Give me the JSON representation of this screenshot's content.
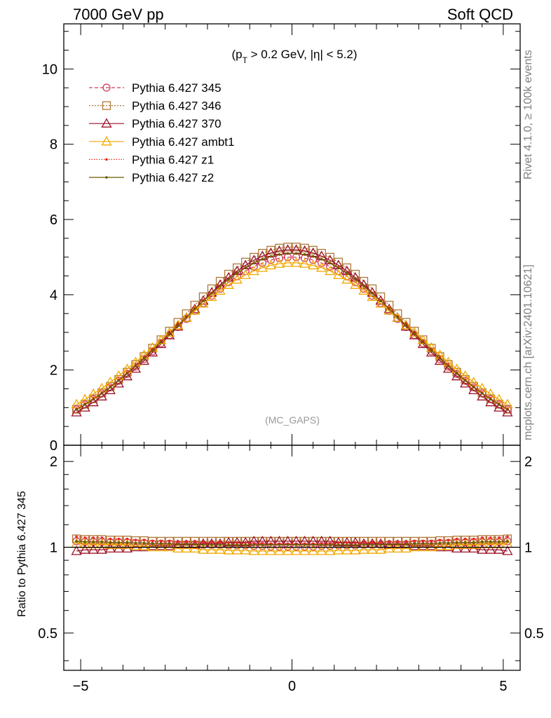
{
  "header": {
    "left": "7000 GeV pp",
    "right": "Soft QCD"
  },
  "side_labels": {
    "rivet": "Rivet 4.1.0, ≥ 100k events",
    "mcplots": "mcplots.cern.ch [arXiv:2401.10621]"
  },
  "chart_data": {
    "type": "line",
    "annotation": {
      "open": "(p",
      "sub": "T",
      "rest": " > 0.2 GeV, |η| < 5.2)"
    },
    "watermark": "(MC_GAPS)",
    "x": [
      -5.1,
      -4.9,
      -4.7,
      -4.5,
      -4.3,
      -4.1,
      -3.9,
      -3.7,
      -3.5,
      -3.3,
      -3.1,
      -2.9,
      -2.7,
      -2.5,
      -2.3,
      -2.1,
      -1.9,
      -1.7,
      -1.5,
      -1.3,
      -1.1,
      -0.9,
      -0.7,
      -0.5,
      -0.3,
      -0.1,
      0.1,
      0.3,
      0.5,
      0.7,
      0.9,
      1.1,
      1.3,
      1.5,
      1.7,
      1.9,
      2.1,
      2.3,
      2.5,
      2.7,
      2.9,
      3.1,
      3.3,
      3.5,
      3.7,
      3.9,
      4.1,
      4.3,
      4.5,
      4.7,
      4.9,
      5.1
    ],
    "main": {
      "ylim": [
        0,
        11.2
      ],
      "yticks": [
        0,
        2,
        4,
        6,
        8,
        10
      ],
      "ytick_labels": [
        "0",
        "2",
        "4",
        "6",
        "8",
        "10"
      ]
    },
    "ratio": {
      "ylabel": "Ratio to Pythia 6.427 345",
      "ylim": [
        0.37,
        2.28
      ],
      "yticks": [
        0.5,
        1,
        2
      ],
      "ytick_labels": [
        "0.5",
        "1",
        "2"
      ]
    },
    "xaxis": {
      "xlim": [
        -5.4,
        5.4
      ],
      "xticks": [
        -5,
        0,
        5
      ],
      "xtick_labels": [
        "−5",
        "0",
        "5"
      ]
    },
    "series": [
      {
        "name": "Pythia 6.427 345",
        "color": "#d23a5a",
        "dash": "5,3",
        "marker": "circle",
        "peak": 5.0,
        "width": 2.8,
        "ratio": [
          1.05,
          1.045,
          1.04,
          1.035,
          1.03,
          1.025,
          1.02,
          1.015,
          1.01,
          1.005
        ]
      },
      {
        "name": "Pythia 6.427 346",
        "color": "#b07838",
        "dash": "2,2",
        "marker": "square",
        "peak": 5.27,
        "width": 2.76,
        "ratio": [
          1.07,
          1.065,
          1.06,
          1.055,
          1.05,
          1.05,
          1.05,
          1.05,
          1.05,
          1.05
        ]
      },
      {
        "name": "Pythia 6.427 370",
        "color": "#9b1028",
        "dash": "",
        "marker": "triangle",
        "peak": 5.2,
        "width": 2.7,
        "ratio": [
          0.97,
          0.98,
          0.99,
          1.0,
          1.01,
          1.02,
          1.03,
          1.04,
          1.05,
          1.05
        ]
      },
      {
        "name": "Pythia 6.427 ambt1",
        "color": "#f0a800",
        "dash": "",
        "marker": "triangle",
        "peak": 4.85,
        "width": 2.95,
        "ratio": [
          1.03,
          1.025,
          1.02,
          1.01,
          1.0,
          0.99,
          0.98,
          0.975,
          0.97,
          0.97
        ]
      },
      {
        "name": "Pythia 6.427 z1",
        "color": "#e8261a",
        "dash": "1.5,2",
        "marker": "dot",
        "peak": 5.1,
        "width": 2.8,
        "ratio": [
          1.09,
          1.08,
          1.07,
          1.06,
          1.05,
          1.045,
          1.04,
          1.035,
          1.03,
          1.03
        ]
      },
      {
        "name": "Pythia 6.427 z2",
        "color": "#6b5a00",
        "dash": "",
        "marker": "dot",
        "peak": 5.1,
        "width": 2.78,
        "ratio": [
          1.05,
          1.045,
          1.04,
          1.035,
          1.03,
          1.025,
          1.02,
          1.02,
          1.02,
          1.02
        ]
      }
    ]
  }
}
